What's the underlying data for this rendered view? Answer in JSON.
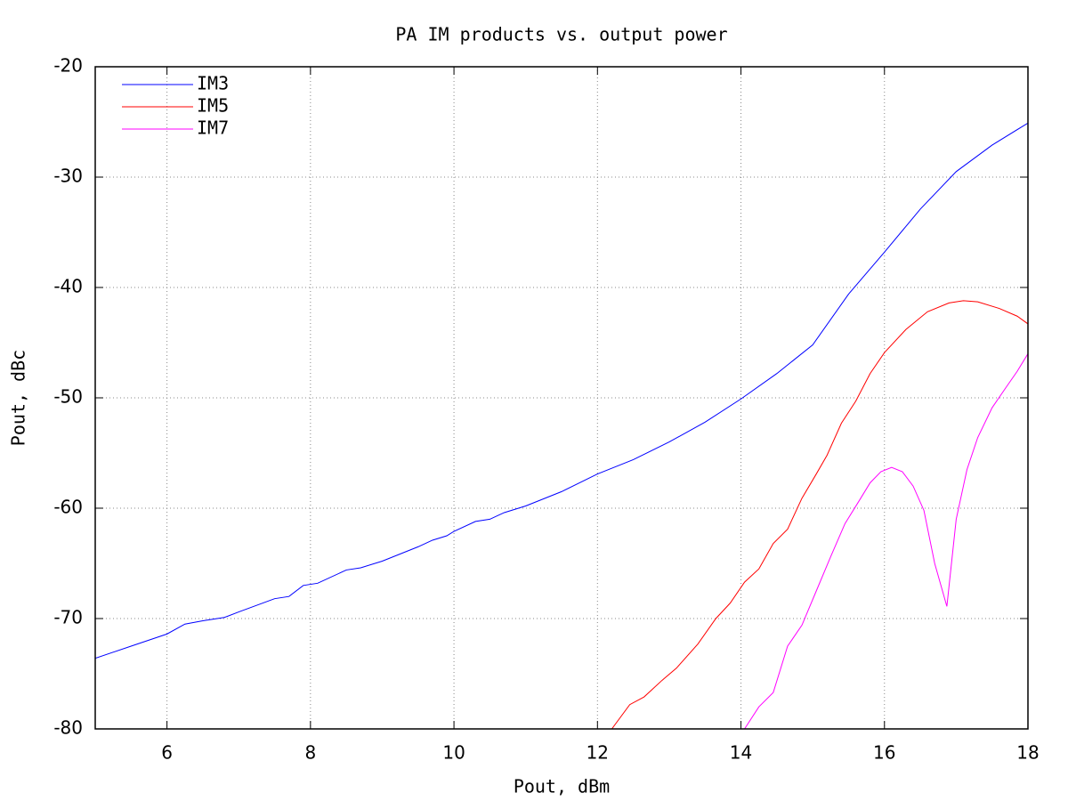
{
  "chart_data": {
    "type": "line",
    "title": "PA IM products vs. output power",
    "x_label": "Pout, dBm",
    "y_label": "Pout, dBc",
    "xlim": [
      5,
      18
    ],
    "ylim": [
      -80,
      -20
    ],
    "xticks": [
      6,
      8,
      10,
      12,
      14,
      16,
      18
    ],
    "yticks": [
      -80,
      -70,
      -60,
      -50,
      -40,
      -30,
      -20
    ],
    "grid": true,
    "legend": "top-left",
    "series": [
      {
        "name": "IM3",
        "color": "#0000ff",
        "x": [
          5.0,
          5.5,
          6.0,
          6.25,
          6.5,
          6.8,
          7.0,
          7.5,
          7.7,
          7.9,
          8.1,
          8.5,
          8.7,
          9.0,
          9.5,
          9.7,
          9.9,
          10.0,
          10.3,
          10.5,
          10.7,
          11.0,
          11.5,
          12.0,
          12.5,
          13.0,
          13.5,
          14.0,
          14.5,
          15.0,
          15.5,
          16.0,
          16.5,
          17.0,
          17.5,
          18.0
        ],
        "values": [
          -73.6,
          -72.5,
          -71.4,
          -70.5,
          -70.2,
          -69.9,
          -69.4,
          -68.2,
          -68.0,
          -67.0,
          -66.8,
          -65.6,
          -65.4,
          -64.8,
          -63.5,
          -62.9,
          -62.5,
          -62.1,
          -61.2,
          -61.0,
          -60.4,
          -59.8,
          -58.5,
          -56.9,
          -55.6,
          -54.0,
          -52.2,
          -50.1,
          -47.8,
          -45.2,
          -40.6,
          -36.8,
          -32.9,
          -29.5,
          -27.1,
          -25.1
        ]
      },
      {
        "name": "IM5",
        "color": "#ff0000",
        "x": [
          12.2,
          12.45,
          12.65,
          12.9,
          13.1,
          13.4,
          13.65,
          13.85,
          14.05,
          14.25,
          14.45,
          14.65,
          14.85,
          15.05,
          15.2,
          15.4,
          15.6,
          15.8,
          16.0,
          16.3,
          16.6,
          16.9,
          17.1,
          17.3,
          17.6,
          17.85,
          18.0
        ],
        "values": [
          -80,
          -77.8,
          -77.1,
          -75.6,
          -74.5,
          -72.3,
          -70.0,
          -68.6,
          -66.7,
          -65.5,
          -63.2,
          -61.9,
          -59.1,
          -56.9,
          -55.2,
          -52.3,
          -50.3,
          -47.8,
          -45.9,
          -43.8,
          -42.2,
          -41.4,
          -41.2,
          -41.3,
          -41.9,
          -42.6,
          -43.3
        ]
      },
      {
        "name": "IM7",
        "color": "#ff00ff",
        "x": [
          14.05,
          14.25,
          14.45,
          14.65,
          14.85,
          15.05,
          15.25,
          15.45,
          15.65,
          15.8,
          15.95,
          16.1,
          16.25,
          16.4,
          16.55,
          16.7,
          16.87,
          17.0,
          17.15,
          17.3,
          17.5,
          17.7,
          17.85,
          18.0
        ],
        "values": [
          -80,
          -78.0,
          -76.7,
          -72.5,
          -70.6,
          -67.5,
          -64.4,
          -61.4,
          -59.3,
          -57.7,
          -56.7,
          -56.3,
          -56.7,
          -58.0,
          -60.2,
          -65.0,
          -68.9,
          -61.0,
          -56.5,
          -53.6,
          -50.9,
          -49.0,
          -47.6,
          -46.0
        ]
      }
    ]
  }
}
